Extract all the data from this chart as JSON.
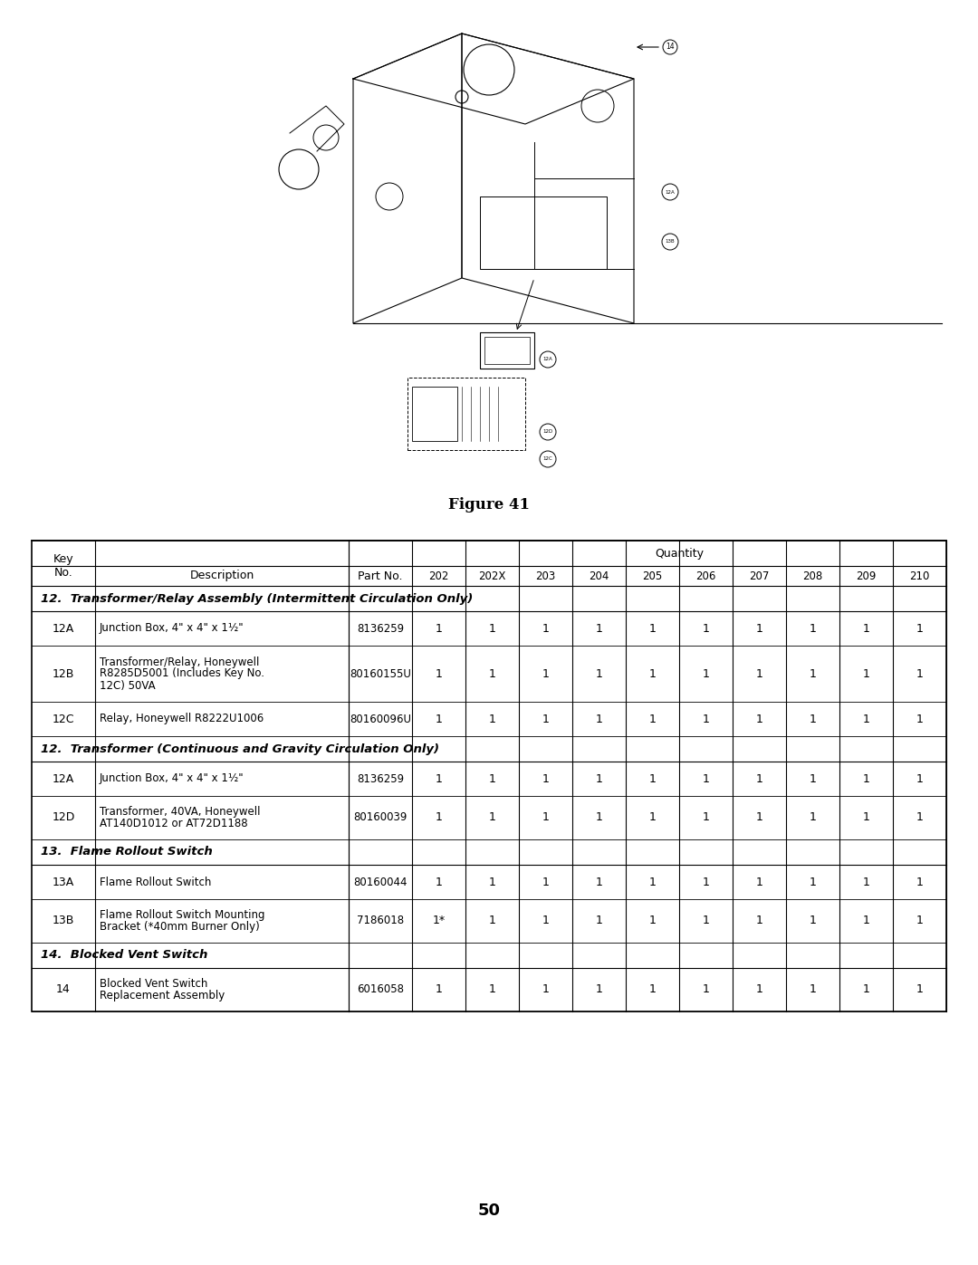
{
  "figure_caption": "Figure 41",
  "page_number": "50",
  "table": {
    "header_row1": [
      "Key\nNo.",
      "Description",
      "Part No.",
      "Quantity",
      "",
      "",
      "",
      "",
      "",
      "",
      "",
      ""
    ],
    "quantity_cols": [
      "202",
      "202X",
      "203",
      "204",
      "205",
      "206",
      "207",
      "208",
      "209",
      "210"
    ],
    "sections": [
      {
        "type": "section_header",
        "text": "12.  Transformer/Relay Assembly (Intermittent Circulation Only)"
      },
      {
        "type": "data_row",
        "key": "12A",
        "description": "Junction Box, 4\" x 4\" x 1½\"",
        "part_no": "8136259",
        "qty": [
          "1",
          "1",
          "1",
          "1",
          "1",
          "1",
          "1",
          "1",
          "1",
          "1"
        ]
      },
      {
        "type": "data_row",
        "key": "12B",
        "description": "Transformer/Relay, Honeywell\nR8285D5001 (Includes Key No.\n12C) 50VA",
        "part_no": "80160155U",
        "qty": [
          "1",
          "1",
          "1",
          "1",
          "1",
          "1",
          "1",
          "1",
          "1",
          "1"
        ]
      },
      {
        "type": "data_row",
        "key": "12C",
        "description": "Relay, Honeywell R8222U1006",
        "part_no": "80160096U",
        "qty": [
          "1",
          "1",
          "1",
          "1",
          "1",
          "1",
          "1",
          "1",
          "1",
          "1"
        ]
      },
      {
        "type": "section_header",
        "text": "12.  Transformer (Continuous and Gravity Circulation Only)"
      },
      {
        "type": "data_row",
        "key": "12A",
        "description": "Junction Box, 4\" x 4\" x 1½\"",
        "part_no": "8136259",
        "qty": [
          "1",
          "1",
          "1",
          "1",
          "1",
          "1",
          "1",
          "1",
          "1",
          "1"
        ]
      },
      {
        "type": "data_row",
        "key": "12D",
        "description": "Transformer, 40VA, Honeywell\nAT140D1012 or AT72D1188",
        "part_no": "80160039",
        "qty": [
          "1",
          "1",
          "1",
          "1",
          "1",
          "1",
          "1",
          "1",
          "1",
          "1"
        ]
      },
      {
        "type": "section_header",
        "text": "13.  Flame Rollout Switch"
      },
      {
        "type": "data_row",
        "key": "13A",
        "description": "Flame Rollout Switch",
        "part_no": "80160044",
        "qty": [
          "1",
          "1",
          "1",
          "1",
          "1",
          "1",
          "1",
          "1",
          "1",
          "1"
        ]
      },
      {
        "type": "data_row",
        "key": "13B",
        "description": "Flame Rollout Switch Mounting\nBracket (*40mm Burner Only)",
        "part_no": "7186018",
        "qty": [
          "1*",
          "1",
          "1",
          "1",
          "1",
          "1",
          "1",
          "1",
          "1",
          "1"
        ]
      },
      {
        "type": "section_header",
        "text": "14.  Blocked Vent Switch"
      },
      {
        "type": "data_row",
        "key": "14",
        "description": "Blocked Vent Switch\nReplacement Assembly",
        "part_no": "6016058",
        "qty": [
          "1",
          "1",
          "1",
          "1",
          "1",
          "1",
          "1",
          "1",
          "1",
          "1"
        ]
      }
    ]
  },
  "bg_color": "#ffffff",
  "border_color": "#000000",
  "text_color": "#000000",
  "header_bg": "#ffffff",
  "section_bg": "#ffffff"
}
